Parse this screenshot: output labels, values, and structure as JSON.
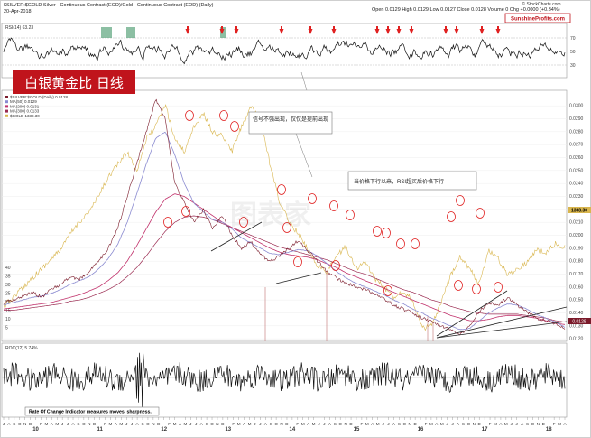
{
  "chart_data": {
    "type": "line",
    "header": {
      "symbol_line": "$SILVER:$GOLD Silver - Continuous Contract (EOD)/Gold - Continuous Contract (EOD) (Daily)",
      "date": "20-Apr-2018",
      "quote": "Open 0.0129  High 0.0129  Low 0.0127  Close 0.0128  Volume 0  Chg +0.0000 (+0.34%)",
      "brand": "SunshineProfits.com",
      "copyright": "© StockCharts.com"
    },
    "title_banner": "白银黄金比  日线",
    "rsi_panel": {
      "label": "RSI(14) 63.23",
      "levels": [
        70,
        30
      ],
      "yticks": [
        "70",
        "50",
        "30"
      ]
    },
    "main_panel": {
      "legend": [
        "$SILVER:$GOLD (Daily) 0.0128",
        "MA(50) 0.0129",
        "MA(200) 0.0131",
        "MA(300) 0.0133",
        "$GOLD 1338.30"
      ],
      "left_yticks": [
        "40",
        "35",
        "30",
        "25",
        "20",
        "15",
        "10",
        "5"
      ],
      "right_yticks": [
        "0.0300",
        "0.0290",
        "0.0280",
        "0.0270",
        "0.0260",
        "0.0250",
        "0.0240",
        "0.0230",
        "0.0220",
        "0.0210",
        "0.0200",
        "0.0190",
        "0.0180",
        "0.0170",
        "0.0160",
        "0.0150",
        "0.0140",
        "0.0130",
        "0.0120"
      ],
      "gold_last": "1338.30",
      "ratio_last": "0.0128",
      "annotations": [
        "信号不强出现，仅仅是提前出现",
        "当价格下行以来，RSI超买后价格下行"
      ],
      "series": [
        {
          "name": "$SILVER:$GOLD",
          "color": "#7a1a2a",
          "values": [
            0.0148,
            0.015,
            0.0153,
            0.0156,
            0.0152,
            0.0158,
            0.0162,
            0.0168,
            0.0166,
            0.0172,
            0.018,
            0.019,
            0.0205,
            0.023,
            0.0255,
            0.028,
            0.0305,
            0.029,
            0.024,
            0.0225,
            0.021,
            0.022,
            0.0205,
            0.0215,
            0.02,
            0.019,
            0.0195,
            0.0185,
            0.018,
            0.0184,
            0.019,
            0.0196,
            0.0188,
            0.018,
            0.0172,
            0.0167,
            0.0163,
            0.016,
            0.0158,
            0.0155,
            0.0151,
            0.0146,
            0.0143,
            0.014,
            0.0136,
            0.0133,
            0.013,
            0.0127,
            0.0123,
            0.013,
            0.0141,
            0.0148,
            0.0146,
            0.0152,
            0.0146,
            0.0141,
            0.0136,
            0.0134,
            0.0132,
            0.0128
          ]
        },
        {
          "name": "MA(50)",
          "color": "#8a8ad0",
          "values": [
            0.0146,
            0.0148,
            0.015,
            0.0152,
            0.0153,
            0.0155,
            0.0158,
            0.0162,
            0.0165,
            0.0168,
            0.0174,
            0.0182,
            0.0193,
            0.021,
            0.0232,
            0.0255,
            0.0275,
            0.028,
            0.0262,
            0.024,
            0.0225,
            0.0218,
            0.0212,
            0.021,
            0.0205,
            0.0198,
            0.0194,
            0.019,
            0.0186,
            0.0185,
            0.0187,
            0.0189,
            0.0188,
            0.0184,
            0.0178,
            0.0172,
            0.0167,
            0.0163,
            0.016,
            0.0157,
            0.0154,
            0.015,
            0.0147,
            0.0143,
            0.014,
            0.0136,
            0.0133,
            0.013,
            0.0127,
            0.0128,
            0.0134,
            0.014,
            0.0144,
            0.0147,
            0.0146,
            0.0143,
            0.0139,
            0.0136,
            0.0133,
            0.0129
          ]
        },
        {
          "name": "MA(200)",
          "color": "#c0306a",
          "values": [
            0.0143,
            0.0144,
            0.0145,
            0.0146,
            0.0147,
            0.0148,
            0.015,
            0.0152,
            0.0154,
            0.0157,
            0.016,
            0.0165,
            0.0171,
            0.018,
            0.0192,
            0.0205,
            0.0218,
            0.0228,
            0.0232,
            0.023,
            0.0225,
            0.022,
            0.0215,
            0.021,
            0.0206,
            0.0202,
            0.0198,
            0.0194,
            0.019,
            0.0187,
            0.0185,
            0.0184,
            0.0183,
            0.0181,
            0.0178,
            0.0175,
            0.0171,
            0.0168,
            0.0165,
            0.0162,
            0.0159,
            0.0156,
            0.0153,
            0.015,
            0.0147,
            0.0144,
            0.0141,
            0.0138,
            0.0136,
            0.0134,
            0.0134,
            0.0135,
            0.0137,
            0.0138,
            0.0138,
            0.0137,
            0.0136,
            0.0134,
            0.0132,
            0.0131
          ]
        },
        {
          "name": "MA(300)",
          "color": "#9a2a50",
          "values": [
            0.0142,
            0.0142,
            0.0143,
            0.0144,
            0.0145,
            0.0146,
            0.0147,
            0.0149,
            0.015,
            0.0152,
            0.0155,
            0.0158,
            0.0162,
            0.0168,
            0.0175,
            0.0184,
            0.0194,
            0.0203,
            0.021,
            0.0214,
            0.0215,
            0.0214,
            0.0212,
            0.0209,
            0.0206,
            0.0203,
            0.02,
            0.0197,
            0.0194,
            0.0191,
            0.0189,
            0.0187,
            0.0185,
            0.0183,
            0.0181,
            0.0178,
            0.0175,
            0.0172,
            0.017,
            0.0167,
            0.0164,
            0.0161,
            0.0158,
            0.0156,
            0.0153,
            0.015,
            0.0148,
            0.0145,
            0.0143,
            0.0141,
            0.014,
            0.0139,
            0.0139,
            0.0139,
            0.0139,
            0.0138,
            0.0137,
            0.0136,
            0.0134,
            0.0133
          ]
        },
        {
          "name": "$GOLD",
          "color": "#d9b64e",
          "values": [
            1150,
            1180,
            1210,
            1240,
            1270,
            1300,
            1330,
            1380,
            1420,
            1450,
            1500,
            1560,
            1600,
            1640,
            1580,
            1680,
            1720,
            1790,
            1680,
            1640,
            1720,
            1760,
            1700,
            1690,
            1640,
            1720,
            1780,
            1740,
            1600,
            1480,
            1420,
            1380,
            1330,
            1280,
            1260,
            1310,
            1340,
            1270,
            1290,
            1240,
            1210,
            1180,
            1200,
            1170,
            1080,
            1090,
            1160,
            1250,
            1310,
            1270,
            1220,
            1330,
            1300,
            1250,
            1270,
            1290,
            1330,
            1320,
            1350,
            1338
          ]
        }
      ]
    },
    "roc_panel": {
      "label": "ROC(12) 5.74%",
      "note": "Rate Of Change Indicator measures moves' sharpness."
    },
    "x_axis": {
      "month_letters": [
        "J",
        "A",
        "S",
        "O",
        "N",
        "D",
        "10",
        "F",
        "M",
        "A",
        "M",
        "J",
        "J",
        "A",
        "S",
        "O",
        "N",
        "D",
        "11",
        "F",
        "M",
        "A",
        "M",
        "J",
        "J",
        "A",
        "S",
        "O",
        "N",
        "D",
        "12",
        "F",
        "M",
        "A",
        "M",
        "J",
        "J",
        "A",
        "S",
        "O",
        "N",
        "D",
        "13",
        "F",
        "M",
        "A",
        "M",
        "J",
        "J",
        "A",
        "S",
        "O",
        "N",
        "D",
        "14",
        "F",
        "M",
        "A",
        "M",
        "J",
        "J",
        "A",
        "S",
        "O",
        "N",
        "D",
        "15",
        "F",
        "M",
        "A",
        "M",
        "J",
        "J",
        "A",
        "S",
        "O",
        "N",
        "D",
        "16",
        "F",
        "M",
        "A",
        "M",
        "J",
        "J",
        "A",
        "S",
        "O",
        "N",
        "D",
        "17",
        "F",
        "M",
        "A",
        "M",
        "J",
        "J",
        "A",
        "S",
        "O",
        "N",
        "D",
        "18",
        "F",
        "M",
        "A"
      ]
    },
    "colors": {
      "banner_bg": "#c0141c",
      "signal_arrow": "#e02020",
      "circle": "#e02020"
    }
  }
}
